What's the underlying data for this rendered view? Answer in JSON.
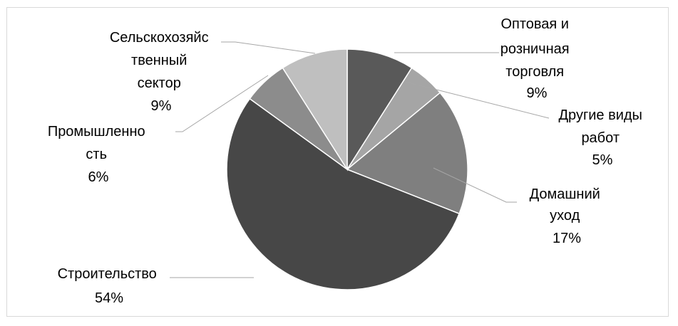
{
  "chart_data": {
    "type": "pie",
    "title": "",
    "legend": "none",
    "slices": [
      {
        "label_lines": [
          "Оптовая и",
          "розничная",
          "торговля"
        ],
        "percent_label": "9%",
        "value": 9,
        "color": "#595959"
      },
      {
        "label_lines": [
          "Другие виды",
          "работ"
        ],
        "percent_label": "5%",
        "value": 5,
        "color": "#a5a5a5"
      },
      {
        "label_lines": [
          "Домашний",
          "уход"
        ],
        "percent_label": "17%",
        "value": 17,
        "color": "#7f7f7f"
      },
      {
        "label_lines": [
          "Строительство"
        ],
        "percent_label": "54%",
        "value": 54,
        "color": "#474747"
      },
      {
        "label_lines": [
          "Промышленно",
          "сть"
        ],
        "percent_label": "6%",
        "value": 6,
        "color": "#8c8c8c"
      },
      {
        "label_lines": [
          "Сельскохозяйс",
          "твенный",
          "сектор"
        ],
        "percent_label": "9%",
        "value": 9,
        "color": "#bfbfbf"
      }
    ]
  }
}
